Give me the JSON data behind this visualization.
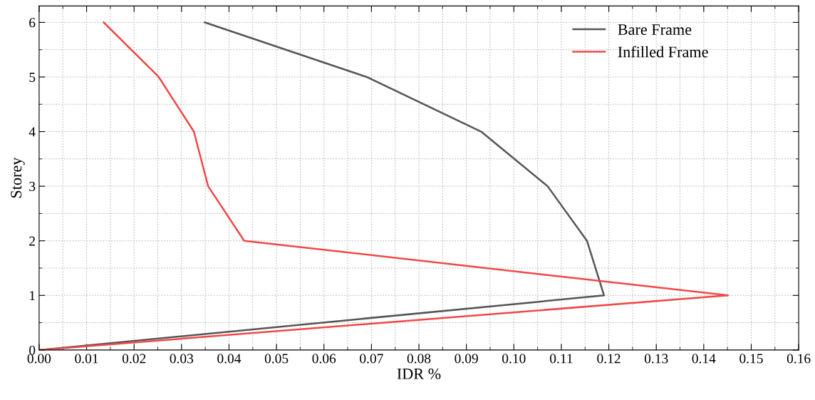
{
  "chart_data": {
    "type": "line",
    "xlabel": "IDR %",
    "ylabel": "Storey",
    "xlim": [
      0,
      0.16
    ],
    "xticks": [
      {
        "value": 0,
        "label": "0.00"
      },
      0.01,
      0.02,
      0.03,
      0.04,
      0.05,
      0.06,
      0.07,
      0.08,
      0.09,
      {
        "value": 0.1,
        "label": "0.10"
      },
      0.11,
      0.12,
      0.13,
      0.14,
      0.15,
      0.16
    ],
    "ylim": [
      0,
      6.3
    ],
    "yticks": [
      0,
      1,
      2,
      3,
      4,
      5,
      6
    ],
    "grid": true,
    "legend": "top right",
    "marker": "none",
    "line_style": "solid",
    "series": [
      {
        "name": "Bare Frame",
        "color": "#555555",
        "x": [
          0,
          0.119,
          0.1154,
          0.1071,
          0.0931,
          0.069,
          0.0349
        ],
        "values": [
          0,
          1,
          2,
          3,
          4,
          5,
          6
        ]
      },
      {
        "name": "Infilled Frame",
        "color": "#f04848",
        "x": [
          0,
          0.1451,
          0.0432,
          0.0356,
          0.0326,
          0.0252,
          0.0136
        ],
        "values": [
          0,
          1,
          2,
          3,
          4,
          5,
          6
        ]
      }
    ]
  }
}
